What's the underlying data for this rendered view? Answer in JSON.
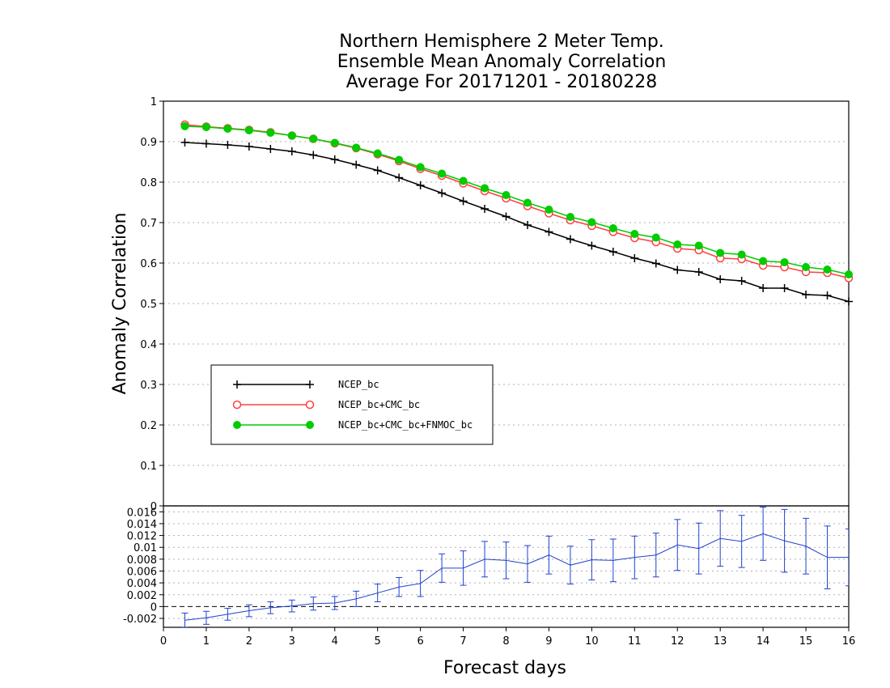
{
  "chart_data": [
    {
      "type": "line",
      "title": [
        "Northern Hemisphere 2 Meter Temp.",
        "Ensemble Mean Anomaly Correlation",
        "Average For 20171201 - 20180228"
      ],
      "ylabel": "Anomaly Correlation",
      "xlim": [
        0,
        16
      ],
      "ylim": [
        0,
        1
      ],
      "yticks": [
        "0",
        "0.1",
        "0.2",
        "0.3",
        "0.4",
        "0.5",
        "0.6",
        "0.7",
        "0.8",
        "0.9",
        "1"
      ],
      "grid": true,
      "legend_position": "lower-left",
      "x": [
        0.5,
        1,
        1.5,
        2,
        2.5,
        3,
        3.5,
        4,
        4.5,
        5,
        5.5,
        6,
        6.5,
        7,
        7.5,
        8,
        8.5,
        9,
        9.5,
        10,
        10.5,
        11,
        11.5,
        12,
        12.5,
        13,
        13.5,
        14,
        14.5,
        15,
        15.5,
        16
      ],
      "series": [
        {
          "name": "NCEP_bc",
          "color": "#000000",
          "marker": "plus",
          "values": [
            0.898,
            0.895,
            0.892,
            0.888,
            0.882,
            0.876,
            0.867,
            0.856,
            0.843,
            0.829,
            0.811,
            0.792,
            0.773,
            0.753,
            0.734,
            0.715,
            0.694,
            0.677,
            0.659,
            0.643,
            0.628,
            0.612,
            0.599,
            0.583,
            0.578,
            0.56,
            0.556,
            0.538,
            0.538,
            0.522,
            0.52,
            0.505
          ]
        },
        {
          "name": "NCEP_bc+CMC_bc",
          "color": "#ff4040",
          "marker": "open-circle",
          "values": [
            0.942,
            0.937,
            0.933,
            0.929,
            0.923,
            0.915,
            0.907,
            0.896,
            0.884,
            0.869,
            0.852,
            0.833,
            0.816,
            0.797,
            0.778,
            0.76,
            0.741,
            0.723,
            0.706,
            0.692,
            0.677,
            0.662,
            0.652,
            0.636,
            0.632,
            0.612,
            0.61,
            0.594,
            0.59,
            0.578,
            0.576,
            0.563
          ]
        },
        {
          "name": "NCEP_bc+CMC_bc+FNMOC_bc",
          "color": "#00cc00",
          "marker": "filled-circle",
          "values": [
            0.938,
            0.936,
            0.932,
            0.928,
            0.922,
            0.915,
            0.907,
            0.897,
            0.885,
            0.871,
            0.855,
            0.837,
            0.821,
            0.803,
            0.785,
            0.768,
            0.749,
            0.732,
            0.714,
            0.701,
            0.686,
            0.672,
            0.663,
            0.646,
            0.643,
            0.625,
            0.621,
            0.605,
            0.602,
            0.59,
            0.584,
            0.572
          ]
        }
      ]
    },
    {
      "type": "line",
      "xlabel": "Forecast days",
      "xlim": [
        0,
        16
      ],
      "ylim": [
        -0.0035,
        0.017
      ],
      "yticks": [
        "-0.002",
        "0",
        "0.002",
        "0.004",
        "0.006",
        "0.008",
        "0.01",
        "0.012",
        "0.014",
        "0.016"
      ],
      "xticks": [
        "0",
        "1",
        "2",
        "3",
        "4",
        "5",
        "6",
        "7",
        "8",
        "9",
        "10",
        "11",
        "12",
        "13",
        "14",
        "15",
        "16"
      ],
      "grid": true,
      "zero_line": "dashed",
      "error_bars": true,
      "x": [
        0.5,
        1,
        1.5,
        2,
        2.5,
        3,
        3.5,
        4,
        4.5,
        5,
        5.5,
        6,
        6.5,
        7,
        7.5,
        8,
        8.5,
        9,
        9.5,
        10,
        10.5,
        11,
        11.5,
        12,
        12.5,
        13,
        13.5,
        14,
        14.5,
        15,
        15.5,
        16
      ],
      "series": [
        {
          "color": "#2040d0",
          "values": [
            -0.0023,
            -0.0019,
            -0.0013,
            -0.0007,
            -0.0002,
            0.0001,
            0.0005,
            0.0006,
            0.0013,
            0.0023,
            0.0033,
            0.0039,
            0.0065,
            0.0065,
            0.008,
            0.0078,
            0.0072,
            0.0087,
            0.007,
            0.0079,
            0.0078,
            0.0083,
            0.0087,
            0.0104,
            0.0098,
            0.0115,
            0.011,
            0.0123,
            0.0111,
            0.0102,
            0.0083,
            0.0083
          ],
          "errors": [
            0.0012,
            0.0011,
            0.001,
            0.001,
            0.001,
            0.001,
            0.0011,
            0.0011,
            0.0013,
            0.0015,
            0.0016,
            0.0022,
            0.0024,
            0.0029,
            0.003,
            0.0031,
            0.0031,
            0.0032,
            0.0032,
            0.0034,
            0.0036,
            0.0036,
            0.0037,
            0.0043,
            0.0043,
            0.0047,
            0.0044,
            0.0045,
            0.0053,
            0.0047,
            0.0053,
            0.0048
          ]
        }
      ]
    }
  ]
}
